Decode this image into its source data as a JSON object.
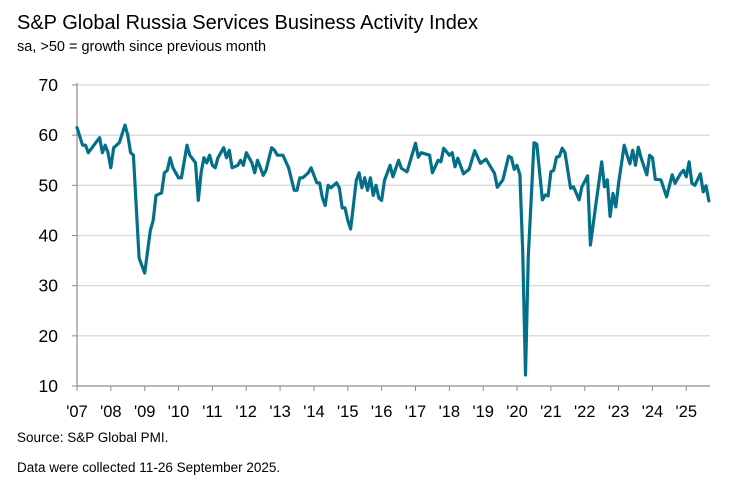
{
  "chart_data": {
    "type": "line",
    "title": "S&P Global Russia Services Business Activity Index",
    "subtitle": "sa, >50 = growth since previous month",
    "xlabel": "",
    "ylabel": "",
    "ylim": [
      10,
      70
    ],
    "yticks": [
      "10",
      "20",
      "30",
      "40",
      "50",
      "60",
      "70"
    ],
    "xlim": [
      "2007-01",
      "2025-09"
    ],
    "xticks": [
      "'07",
      "'08",
      "'09",
      "'10",
      "'11",
      "'12",
      "'13",
      "'14",
      "'15",
      "'16",
      "'17",
      "'18",
      "'19",
      "'20",
      "'21",
      "'22",
      "'23",
      "'24",
      "'25"
    ],
    "grid": "horizontal",
    "line_color": "#046f88",
    "series": [
      {
        "points": [
          [
            "2007-01",
            61.5
          ],
          [
            "2007-03",
            58
          ],
          [
            "2007-04",
            58
          ],
          [
            "2007-05",
            56.5
          ],
          [
            "2007-07",
            58
          ],
          [
            "2007-09",
            59.5
          ],
          [
            "2007-10",
            56.5
          ],
          [
            "2007-11",
            58
          ],
          [
            "2007-12",
            56.5
          ],
          [
            "2008-01",
            53.5
          ],
          [
            "2008-02",
            57.5
          ],
          [
            "2008-04",
            58.5
          ],
          [
            "2008-06",
            62
          ],
          [
            "2008-07",
            60
          ],
          [
            "2008-08",
            56.5
          ],
          [
            "2008-09",
            56
          ],
          [
            "2008-11",
            35.5
          ],
          [
            "2008-12",
            34
          ],
          [
            "2009-01",
            32.5
          ],
          [
            "2009-03",
            41
          ],
          [
            "2009-04",
            43
          ],
          [
            "2009-05",
            48
          ],
          [
            "2009-07",
            48.5
          ],
          [
            "2009-08",
            52.5
          ],
          [
            "2009-09",
            53
          ],
          [
            "2009-10",
            55.5
          ],
          [
            "2009-11",
            53.5
          ],
          [
            "2010-01",
            51.5
          ],
          [
            "2010-02",
            51.5
          ],
          [
            "2010-04",
            58
          ],
          [
            "2010-05",
            56
          ],
          [
            "2010-07",
            54.5
          ],
          [
            "2010-08",
            47
          ],
          [
            "2010-09",
            52.5
          ],
          [
            "2010-10",
            55.5
          ],
          [
            "2010-11",
            54.5
          ],
          [
            "2010-12",
            56
          ],
          [
            "2011-01",
            54
          ],
          [
            "2011-02",
            53.5
          ],
          [
            "2011-03",
            55.5
          ],
          [
            "2011-05",
            57.5
          ],
          [
            "2011-06",
            55.5
          ],
          [
            "2011-07",
            57
          ],
          [
            "2011-08",
            53.5
          ],
          [
            "2011-10",
            54
          ],
          [
            "2011-11",
            55
          ],
          [
            "2011-12",
            54
          ],
          [
            "2012-01",
            56.5
          ],
          [
            "2012-03",
            54.5
          ],
          [
            "2012-04",
            52.5
          ],
          [
            "2012-05",
            55
          ],
          [
            "2012-06",
            53.5
          ],
          [
            "2012-07",
            52
          ],
          [
            "2012-08",
            53
          ],
          [
            "2012-10",
            57.5
          ],
          [
            "2012-11",
            57
          ],
          [
            "2012-12",
            56
          ],
          [
            "2013-02",
            56
          ],
          [
            "2013-04",
            53.5
          ],
          [
            "2013-06",
            49
          ],
          [
            "2013-07",
            49
          ],
          [
            "2013-08",
            51.5
          ],
          [
            "2013-09",
            51.5
          ],
          [
            "2013-11",
            52.5
          ],
          [
            "2013-12",
            53.5
          ],
          [
            "2014-02",
            50.5
          ],
          [
            "2014-03",
            50.5
          ],
          [
            "2014-04",
            47.5
          ],
          [
            "2014-05",
            46
          ],
          [
            "2014-06",
            50
          ],
          [
            "2014-07",
            49.5
          ],
          [
            "2014-09",
            50.5
          ],
          [
            "2014-10",
            49.5
          ],
          [
            "2014-11",
            45.5
          ],
          [
            "2014-12",
            45.5
          ],
          [
            "2015-01",
            43
          ],
          [
            "2015-02",
            41.3
          ],
          [
            "2015-03",
            46
          ],
          [
            "2015-04",
            51
          ],
          [
            "2015-05",
            52.5
          ],
          [
            "2015-06",
            49.5
          ],
          [
            "2015-07",
            51.5
          ],
          [
            "2015-08",
            49
          ],
          [
            "2015-09",
            51.5
          ],
          [
            "2015-10",
            48
          ],
          [
            "2015-11",
            50
          ],
          [
            "2015-12",
            47.5
          ],
          [
            "2016-01",
            47
          ],
          [
            "2016-02",
            51
          ],
          [
            "2016-04",
            54
          ],
          [
            "2016-05",
            51.7
          ],
          [
            "2016-07",
            55
          ],
          [
            "2016-08",
            53.4
          ],
          [
            "2016-10",
            52.7
          ],
          [
            "2017-01",
            58.4
          ],
          [
            "2017-02",
            55.6
          ],
          [
            "2017-03",
            56.5
          ],
          [
            "2017-06",
            56
          ],
          [
            "2017-07",
            52.5
          ],
          [
            "2017-09",
            55
          ],
          [
            "2017-10",
            54.7
          ],
          [
            "2017-11",
            57.4
          ],
          [
            "2018-01",
            56
          ],
          [
            "2018-02",
            56.5
          ],
          [
            "2018-03",
            53.7
          ],
          [
            "2018-04",
            55.4
          ],
          [
            "2018-06",
            52.3
          ],
          [
            "2018-08",
            53.2
          ],
          [
            "2018-10",
            56.9
          ],
          [
            "2018-12",
            54.4
          ],
          [
            "2019-02",
            55.2
          ],
          [
            "2019-05",
            52.4
          ],
          [
            "2019-06",
            49.6
          ],
          [
            "2019-08",
            51.1
          ],
          [
            "2019-10",
            55.8
          ],
          [
            "2019-11",
            55.5
          ],
          [
            "2019-12",
            53.2
          ],
          [
            "2020-01",
            54
          ],
          [
            "2020-02",
            52.1
          ],
          [
            "2020-03",
            37
          ],
          [
            "2020-04",
            12.2
          ],
          [
            "2020-05",
            35.9
          ],
          [
            "2020-06",
            47.3
          ],
          [
            "2020-07",
            58.5
          ],
          [
            "2020-08",
            58.2
          ],
          [
            "2020-10",
            47.1
          ],
          [
            "2020-11",
            48.1
          ],
          [
            "2020-12",
            47.9
          ],
          [
            "2021-01",
            52.7
          ],
          [
            "2021-02",
            53
          ],
          [
            "2021-03",
            55.6
          ],
          [
            "2021-04",
            55.8
          ],
          [
            "2021-05",
            57.4
          ],
          [
            "2021-06",
            56.5
          ],
          [
            "2021-08",
            49.4
          ],
          [
            "2021-09",
            49.7
          ],
          [
            "2021-11",
            47.1
          ],
          [
            "2021-12",
            49.7
          ],
          [
            "2022-02",
            51.9
          ],
          [
            "2022-03",
            38.1
          ],
          [
            "2022-05",
            46.4
          ],
          [
            "2022-07",
            54.7
          ],
          [
            "2022-08",
            49.7
          ],
          [
            "2022-09",
            51.1
          ],
          [
            "2022-10",
            43.8
          ],
          [
            "2022-11",
            48.4
          ],
          [
            "2022-12",
            45.7
          ],
          [
            "2023-01",
            50.4
          ],
          [
            "2023-03",
            58
          ],
          [
            "2023-04",
            56
          ],
          [
            "2023-05",
            54.3
          ],
          [
            "2023-06",
            57
          ],
          [
            "2023-07",
            54
          ],
          [
            "2023-08",
            57.6
          ],
          [
            "2023-09",
            55.4
          ],
          [
            "2023-11",
            52.1
          ],
          [
            "2023-12",
            56
          ],
          [
            "2024-01",
            55.5
          ],
          [
            "2024-02",
            51.2
          ],
          [
            "2024-04",
            51.1
          ],
          [
            "2024-05",
            49.4
          ],
          [
            "2024-06",
            47.7
          ],
          [
            "2024-08",
            52.1
          ],
          [
            "2024-09",
            50.4
          ],
          [
            "2024-11",
            52.4
          ],
          [
            "2024-12",
            53
          ],
          [
            "2025-01",
            51.7
          ],
          [
            "2025-02",
            54.7
          ],
          [
            "2025-03",
            50.4
          ],
          [
            "2025-04",
            50
          ],
          [
            "2025-06",
            52.3
          ],
          [
            "2025-07",
            48.7
          ],
          [
            "2025-08",
            49.9
          ],
          [
            "2025-09",
            46.9
          ]
        ]
      }
    ]
  },
  "footer": {
    "source": "Source: S&P Global PMI.",
    "note": "Data were collected 11-26 September 2025."
  }
}
